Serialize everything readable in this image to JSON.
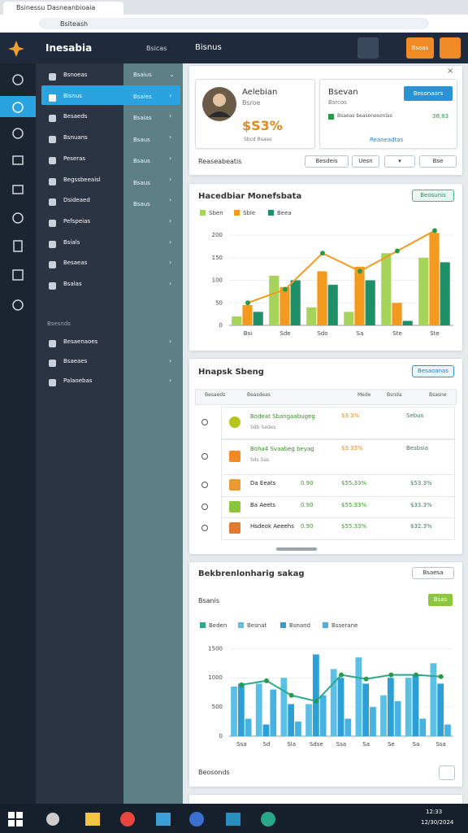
{
  "browser": {
    "tab": "Bsinessu Dasneanbioaia",
    "url": "Bsiteash"
  },
  "header": {
    "brand": "Inesabia",
    "crumb1": "Bsicas",
    "crumb2": "Bisnus",
    "button": "Bsoas"
  },
  "sidebar": {
    "items": [
      "Bsnoeas",
      "Bisnus",
      "Besaeds",
      "Bsnuans",
      "Peseras",
      "Begssbeeaisl",
      "Dsideaed",
      "Pefspeias",
      "Bsials",
      "Besaeas",
      "Bsalas"
    ],
    "section": "Bsesnds",
    "items2": [
      "Besaenaoes",
      "Bsaeaes",
      "Palaoebas"
    ]
  },
  "submenu": [
    "Bsaius",
    "Bsaies",
    "Bsaias",
    "Bsaus",
    "Bsaus",
    "Bsaus",
    "Bsaus"
  ],
  "profile": {
    "name": "Aelebian",
    "role": "Bsroe",
    "value": "$S3%",
    "note": "Sbcd Bsaas"
  },
  "summary": {
    "title": "Bsevan",
    "subtitle": "Bsrcos",
    "button": "Besonaors",
    "line": "Bsaeas beasonesonlas",
    "value": "38,83",
    "link": "Reaneadtas"
  },
  "toolbar": {
    "label": "Reaseabeatis",
    "buttons": [
      "Besdeis",
      "Uesn",
      "Bse"
    ]
  },
  "chart1": {
    "type": "bar",
    "title": "Hacedbiar Monefsbata",
    "badge": "Beea",
    "button": "Beosunis",
    "categories": [
      "Bsi",
      "Sde",
      "Sdo",
      "Sa",
      "Ste",
      "Ste"
    ],
    "series": [
      {
        "name": "Sben",
        "color": "#a6d45a",
        "values": [
          20,
          110,
          40,
          30,
          160,
          150
        ]
      },
      {
        "name": "Sble",
        "color": "#f39a1e",
        "values": [
          45,
          85,
          120,
          130,
          50,
          205
        ]
      },
      {
        "name": "Beea",
        "color": "#1f8f68",
        "values": [
          30,
          100,
          90,
          100,
          10,
          140
        ]
      }
    ],
    "line": {
      "color": "#f39a1e",
      "values": [
        50,
        80,
        160,
        120,
        165,
        210
      ]
    },
    "ylim": [
      0,
      220
    ],
    "yticks": [
      0,
      50,
      100,
      150,
      200
    ]
  },
  "table": {
    "title": "Hnapsk Sbeng",
    "button": "Besaoanas",
    "header": [
      "Besaeds",
      "Beasdeas",
      "Mede",
      "Bsnda",
      "Bsasne"
    ],
    "rows": [
      [
        "Bodeat Sbangaabugeg",
        "Sdb Sades",
        "$3.3%",
        "Sebus"
      ],
      [
        "Boha4 Svaabeg beyag",
        "Sds Sas",
        "$3.33%",
        "Besbsia"
      ],
      [
        "Da Eeats",
        "0.90",
        "$55.33%",
        "$53.3%"
      ],
      [
        "Ba Aeets",
        "0.90",
        "$55.33%",
        "$33.3%"
      ],
      [
        "Hsdeok Aeeehs",
        "0.90",
        "$55.33%",
        "$32.3%"
      ]
    ]
  },
  "chart2": {
    "type": "bar",
    "title": "Bekbrenlonharig sakag",
    "subtitle": "Bsanis",
    "button": "Bsaesa",
    "tag": "Bsas",
    "categories": [
      "Ssa",
      "Sd",
      "Sla",
      "Sdse",
      "Ssa",
      "Sa",
      "Se",
      "Sa",
      "Ssa"
    ],
    "series": [
      {
        "name": "Besnat",
        "color": "#5cc0e6",
        "values": [
          850,
          900,
          1000,
          550,
          1150,
          1350,
          700,
          1000,
          1250
        ]
      },
      {
        "name": "Bsnand",
        "color": "#2b9fd6",
        "values": [
          900,
          200,
          550,
          1400,
          1000,
          900,
          1000,
          1050,
          900
        ]
      },
      {
        "name": "Bsserane",
        "color": "#48b3e0",
        "values": [
          300,
          800,
          250,
          700,
          300,
          500,
          600,
          300,
          200
        ]
      }
    ],
    "line": {
      "name": "Beden",
      "color": "#2aa88a",
      "values": [
        880,
        950,
        700,
        600,
        1050,
        980,
        1050,
        1050,
        1020
      ]
    },
    "ylim": [
      0,
      1700
    ],
    "yticks": [
      0,
      500,
      1000,
      1500
    ]
  },
  "footer": "Beosonds",
  "taskbar": {
    "time": "12:33",
    "date": "12/30/2024"
  }
}
